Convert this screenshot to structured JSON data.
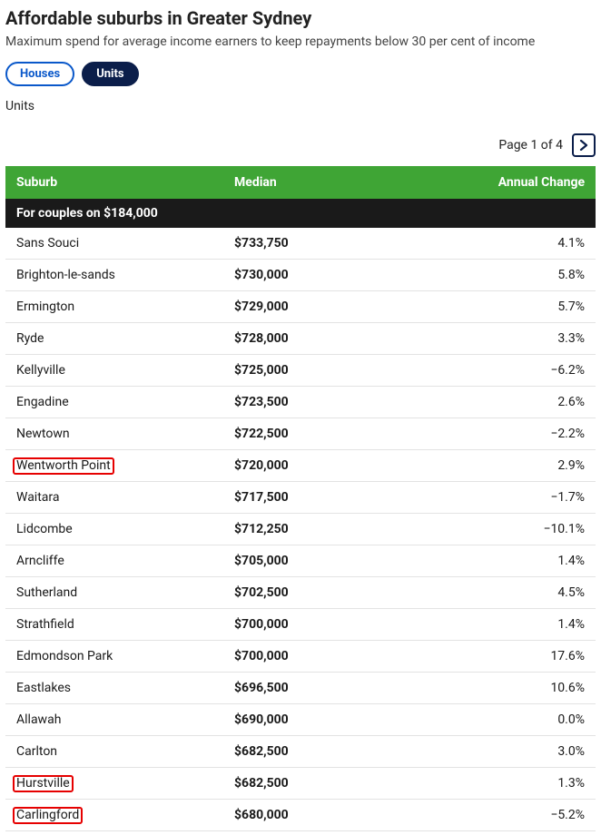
{
  "title": "Affordable suburbs in Greater Sydney",
  "subtitle": "Maximum spend for average income earners to keep repayments below 30 per cent of income",
  "tabs": {
    "houses": "Houses",
    "units": "Units"
  },
  "section_label": "Units",
  "pager_text": "Page 1 of 4",
  "columns": {
    "suburb": "Suburb",
    "median": "Median",
    "change": "Annual Change"
  },
  "group_heading": "For couples on $184,000",
  "colors": {
    "header_bg": "#3fa535",
    "group_bg": "#1a1a1a",
    "tab_active_bg": "#0b1e4a",
    "tab_inactive_border": "#0a58ca",
    "highlight_border": "#e60000",
    "row_border": "#e3e3e3"
  },
  "rows": [
    {
      "suburb": "Sans Souci",
      "median": "$733,750",
      "change": "4.1%",
      "highlight": false
    },
    {
      "suburb": "Brighton-le-sands",
      "median": "$730,000",
      "change": "5.8%",
      "highlight": false
    },
    {
      "suburb": "Ermington",
      "median": "$729,000",
      "change": "5.7%",
      "highlight": false
    },
    {
      "suburb": "Ryde",
      "median": "$728,000",
      "change": "3.3%",
      "highlight": false
    },
    {
      "suburb": "Kellyville",
      "median": "$725,000",
      "change": "−6.2%",
      "highlight": false
    },
    {
      "suburb": "Engadine",
      "median": "$723,500",
      "change": "2.6%",
      "highlight": false
    },
    {
      "suburb": "Newtown",
      "median": "$722,500",
      "change": "−2.2%",
      "highlight": false
    },
    {
      "suburb": "Wentworth Point",
      "median": "$720,000",
      "change": "2.9%",
      "highlight": true
    },
    {
      "suburb": "Waitara",
      "median": "$717,500",
      "change": "−1.7%",
      "highlight": false
    },
    {
      "suburb": "Lidcombe",
      "median": "$712,250",
      "change": "−10.1%",
      "highlight": false
    },
    {
      "suburb": "Arncliffe",
      "median": "$705,000",
      "change": "1.4%",
      "highlight": false
    },
    {
      "suburb": "Sutherland",
      "median": "$702,500",
      "change": "4.5%",
      "highlight": false
    },
    {
      "suburb": "Strathfield",
      "median": "$700,000",
      "change": "1.4%",
      "highlight": false
    },
    {
      "suburb": "Edmondson Park",
      "median": "$700,000",
      "change": "17.6%",
      "highlight": false
    },
    {
      "suburb": "Eastlakes",
      "median": "$696,500",
      "change": "10.6%",
      "highlight": false
    },
    {
      "suburb": "Allawah",
      "median": "$690,000",
      "change": "0.0%",
      "highlight": false
    },
    {
      "suburb": "Carlton",
      "median": "$682,500",
      "change": "3.0%",
      "highlight": false
    },
    {
      "suburb": "Hurstville",
      "median": "$682,500",
      "change": "1.3%",
      "highlight": true
    },
    {
      "suburb": "Carlingford",
      "median": "$680,000",
      "change": "−5.2%",
      "highlight": true
    }
  ]
}
